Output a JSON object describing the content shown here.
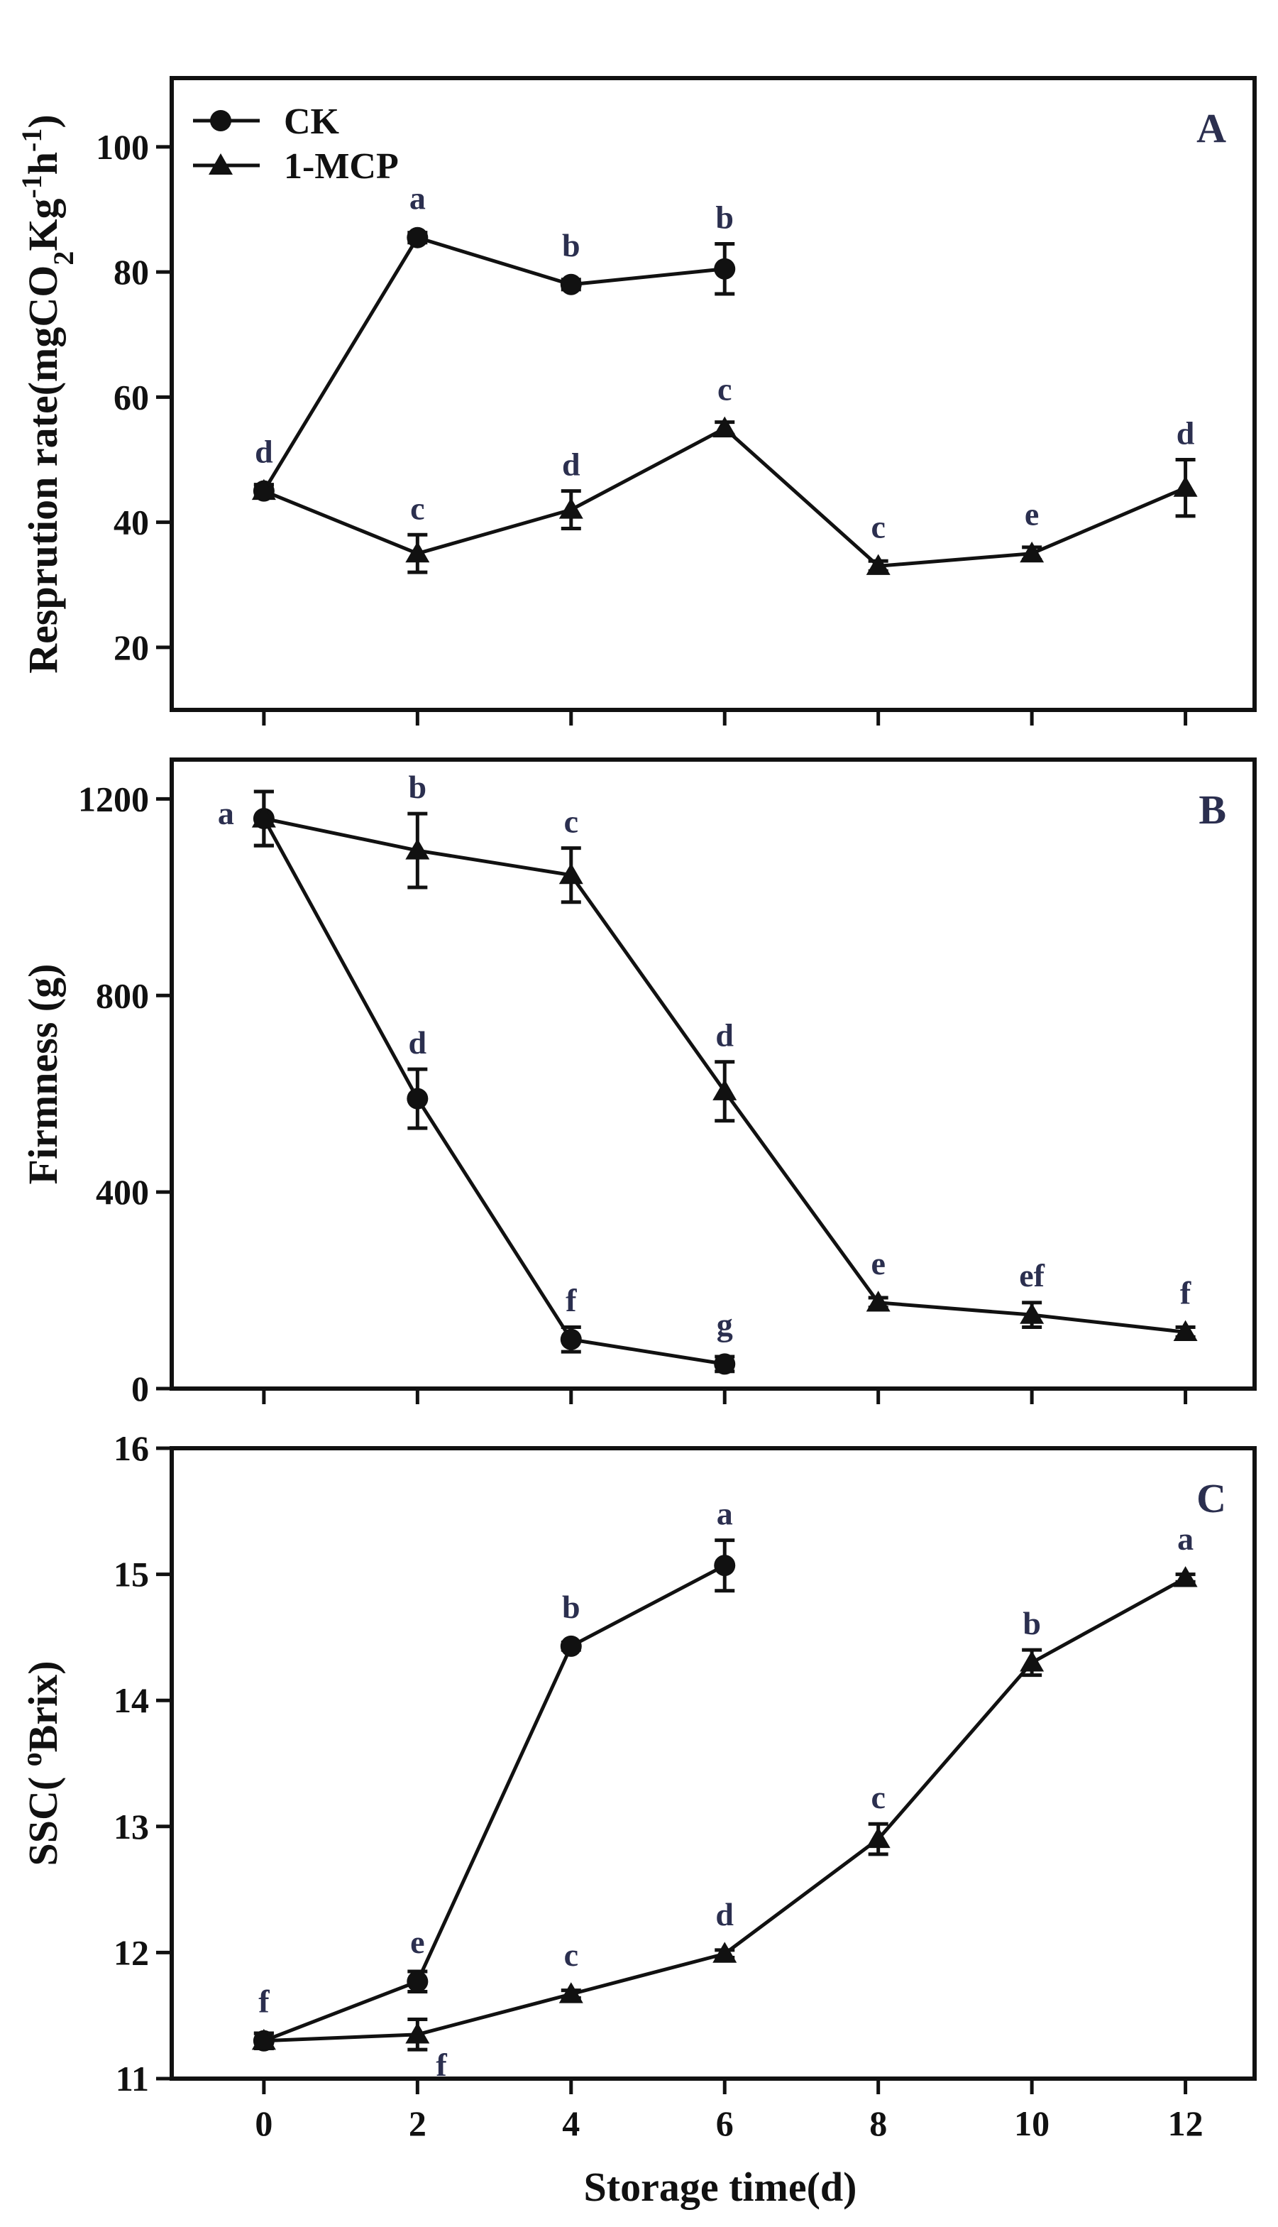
{
  "colors": {
    "ink": "#111111",
    "annotation": "#2b2f4f",
    "background": "#ffffff"
  },
  "chart_data": [
    {
      "type": "line",
      "panel_label": "A",
      "title": "",
      "xlabel": "",
      "ylabel": "Resprution rate(mgCO2Kg-1h-1)",
      "ylabel_parts": {
        "base": "Resprution rate(mgCO",
        "sub": "2",
        "mid": "Kg",
        "sup1": "-1",
        "h": "h",
        "sup2": "-1",
        "close": ")"
      },
      "xlim": [
        -1.2,
        12.9
      ],
      "ylim": [
        10,
        111
      ],
      "x_ticks": [
        "0",
        "2",
        "4",
        "6",
        "8",
        "10",
        "12"
      ],
      "y_ticks": [
        "20",
        "40",
        "60",
        "80",
        "100"
      ],
      "legend": {
        "position": "top-left",
        "entries": [
          "CK",
          "1-MCP"
        ]
      },
      "series": [
        {
          "name": "CK",
          "marker": "circle",
          "x": [
            0,
            2,
            4,
            6
          ],
          "y": [
            45,
            85.5,
            78,
            80.5
          ],
          "err": [
            1,
            0.8,
            0.8,
            4
          ],
          "labels": [
            "d",
            "a",
            "b",
            "b"
          ]
        },
        {
          "name": "1-MCP",
          "marker": "triangle",
          "x": [
            0,
            2,
            4,
            6,
            8,
            10,
            12
          ],
          "y": [
            45,
            35,
            42,
            55,
            33,
            35,
            45.5
          ],
          "err": [
            1,
            3,
            3,
            1,
            0.8,
            1,
            4.5
          ],
          "labels": [
            "",
            "c",
            "d",
            "c",
            "c",
            "e",
            "d"
          ]
        }
      ]
    },
    {
      "type": "line",
      "panel_label": "B",
      "title": "",
      "xlabel": "",
      "ylabel": "Firmness (g)",
      "xlim": [
        -1.2,
        12.9
      ],
      "ylim": [
        0,
        1280
      ],
      "x_ticks": [
        "0",
        "2",
        "4",
        "6",
        "8",
        "10",
        "12"
      ],
      "y_ticks": [
        "0",
        "400",
        "800",
        "1200"
      ],
      "series": [
        {
          "name": "CK",
          "marker": "circle",
          "x": [
            0,
            2,
            4,
            6
          ],
          "y": [
            1160,
            590,
            100,
            50
          ],
          "err": [
            55,
            60,
            25,
            15
          ],
          "labels": [
            "a",
            "d",
            "f",
            "g"
          ]
        },
        {
          "name": "1-MCP",
          "marker": "triangle",
          "x": [
            0,
            2,
            4,
            6,
            8,
            10,
            12
          ],
          "y": [
            1160,
            1095,
            1045,
            605,
            175,
            150,
            115
          ],
          "err": [
            55,
            75,
            55,
            60,
            10,
            25,
            10
          ],
          "labels": [
            "",
            "b",
            "c",
            "d",
            "e",
            "ef",
            "f"
          ]
        }
      ]
    },
    {
      "type": "line",
      "panel_label": "C",
      "title": "",
      "xlabel": "Storage time(d)",
      "ylabel": "SSC( oBrix)",
      "ylabel_parts": {
        "pre": "SSC( ",
        "sup": "o",
        "post": "Brix)"
      },
      "xlim": [
        -1.2,
        12.9
      ],
      "ylim": [
        11,
        16
      ],
      "x_ticks": [
        "0",
        "2",
        "4",
        "6",
        "8",
        "10",
        "12"
      ],
      "y_ticks": [
        "11",
        "12",
        "13",
        "14",
        "15",
        "16"
      ],
      "series": [
        {
          "name": "CK",
          "marker": "circle",
          "x": [
            0,
            2,
            4,
            6
          ],
          "y": [
            11.3,
            11.77,
            14.43,
            15.07
          ],
          "err": [
            0.06,
            0.08,
            0.03,
            0.2
          ],
          "labels": [
            "f",
            "e",
            "b",
            "a"
          ]
        },
        {
          "name": "1-MCP",
          "marker": "triangle",
          "x": [
            0,
            2,
            4,
            6,
            8,
            10,
            12
          ],
          "y": [
            11.3,
            11.35,
            11.67,
            11.99,
            12.9,
            14.3,
            14.97
          ],
          "err": [
            0.06,
            0.12,
            0.03,
            0.03,
            0.12,
            0.1,
            0.03
          ],
          "labels": [
            "",
            "f",
            "c",
            "d",
            "c",
            "b",
            "a"
          ]
        }
      ]
    }
  ]
}
